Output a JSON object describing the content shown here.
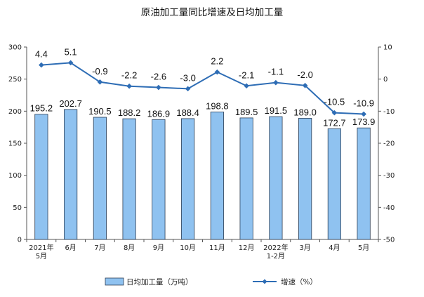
{
  "chart_data": {
    "type": "bar",
    "title": "原油加工量同比增速及日均加工量",
    "categories": [
      [
        "2021年",
        "5月"
      ],
      [
        "6月"
      ],
      [
        "7月"
      ],
      [
        "8月"
      ],
      [
        "9月"
      ],
      [
        "10月"
      ],
      [
        "11月"
      ],
      [
        "12月"
      ],
      [
        "2022年",
        "1-2月"
      ],
      [
        "3月"
      ],
      [
        "4月"
      ],
      [
        "5月"
      ]
    ],
    "y_left": {
      "range": [
        0,
        300
      ],
      "ticks": [
        "0",
        "50",
        "100",
        "150",
        "200",
        "250",
        "300"
      ]
    },
    "y_right": {
      "range": [
        -50,
        10
      ],
      "ticks": [
        "-50",
        "-40",
        "-30",
        "-20",
        "-10",
        "0",
        "10"
      ]
    },
    "series": [
      {
        "name": "日均加工量（万吨）",
        "kind": "bar",
        "axis": "left",
        "color": "#8fc2f0",
        "values": [
          195.2,
          202.7,
          190.5,
          188.2,
          186.9,
          188.4,
          198.8,
          189.5,
          191.5,
          189.0,
          172.7,
          173.9
        ],
        "labels": [
          "195.2",
          "202.7",
          "190.5",
          "188.2",
          "186.9",
          "188.4",
          "198.8",
          "189.5",
          "191.5",
          "189.0",
          "172.7",
          "173.9"
        ]
      },
      {
        "name": "增速（%）",
        "kind": "line",
        "axis": "right",
        "color": "#2e6db5",
        "values": [
          4.4,
          5.1,
          -0.9,
          -2.2,
          -2.6,
          -3.0,
          2.2,
          -2.1,
          -1.1,
          -2.0,
          -10.5,
          -10.9
        ],
        "labels": [
          "4.4",
          "5.1",
          "-0.9",
          "-2.2",
          "-2.6",
          "-3.0",
          "2.2",
          "-2.1",
          "-1.1",
          "-2.0",
          "-10.5",
          "-10.9"
        ]
      }
    ],
    "legend_position": "bottom",
    "grid": false
  }
}
